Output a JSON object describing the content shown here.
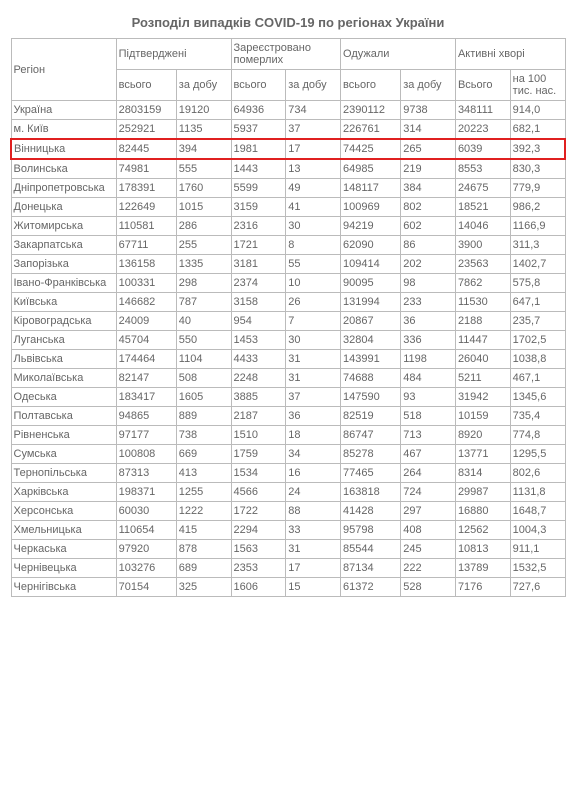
{
  "title": "Розподіл випадків COVID-19 по регіонах України",
  "table": {
    "header_row1": {
      "region": "Регіон",
      "confirmed": "Підтверджені",
      "deaths": "Зареєстровано померлих",
      "recovered": "Одужали",
      "active": "Активні хворі"
    },
    "header_row2": {
      "total": "всього",
      "daily": "за добу",
      "total_cap": "Всього",
      "per100k": "на 100 тис. нас."
    },
    "highlight_index": 2,
    "rows": [
      {
        "region": "Україна",
        "c1": "2803159",
        "c2": "19120",
        "c3": "64936",
        "c4": "734",
        "c5": "2390112",
        "c6": "9738",
        "c7": "348111",
        "c8": "914,0"
      },
      {
        "region": "м. Київ",
        "c1": "252921",
        "c2": "1135",
        "c3": "5937",
        "c4": "37",
        "c5": "226761",
        "c6": "314",
        "c7": "20223",
        "c8": "682,1"
      },
      {
        "region": "Вінницька",
        "c1": "82445",
        "c2": "394",
        "c3": "1981",
        "c4": "17",
        "c5": "74425",
        "c6": "265",
        "c7": "6039",
        "c8": "392,3"
      },
      {
        "region": "Волинська",
        "c1": "74981",
        "c2": "555",
        "c3": "1443",
        "c4": "13",
        "c5": "64985",
        "c6": "219",
        "c7": "8553",
        "c8": "830,3"
      },
      {
        "region": "Дніпропетровська",
        "c1": "178391",
        "c2": "1760",
        "c3": "5599",
        "c4": "49",
        "c5": "148117",
        "c6": "384",
        "c7": "24675",
        "c8": "779,9"
      },
      {
        "region": "Донецька",
        "c1": "122649",
        "c2": "1015",
        "c3": "3159",
        "c4": "41",
        "c5": "100969",
        "c6": "802",
        "c7": "18521",
        "c8": "986,2"
      },
      {
        "region": "Житомирська",
        "c1": "110581",
        "c2": "286",
        "c3": "2316",
        "c4": "30",
        "c5": "94219",
        "c6": "602",
        "c7": "14046",
        "c8": "1166,9"
      },
      {
        "region": "Закарпатська",
        "c1": "67711",
        "c2": "255",
        "c3": "1721",
        "c4": "8",
        "c5": "62090",
        "c6": "86",
        "c7": "3900",
        "c8": "311,3"
      },
      {
        "region": "Запорізька",
        "c1": "136158",
        "c2": "1335",
        "c3": "3181",
        "c4": "55",
        "c5": "109414",
        "c6": "202",
        "c7": "23563",
        "c8": "1402,7"
      },
      {
        "region": "Івано-Франківська",
        "c1": "100331",
        "c2": "298",
        "c3": "2374",
        "c4": "10",
        "c5": "90095",
        "c6": "98",
        "c7": "7862",
        "c8": "575,8"
      },
      {
        "region": "Київська",
        "c1": "146682",
        "c2": "787",
        "c3": "3158",
        "c4": "26",
        "c5": "131994",
        "c6": "233",
        "c7": "11530",
        "c8": "647,1"
      },
      {
        "region": "Кіровоградська",
        "c1": "24009",
        "c2": "40",
        "c3": "954",
        "c4": "7",
        "c5": "20867",
        "c6": "36",
        "c7": "2188",
        "c8": "235,7"
      },
      {
        "region": "Луганська",
        "c1": "45704",
        "c2": "550",
        "c3": "1453",
        "c4": "30",
        "c5": "32804",
        "c6": "336",
        "c7": "11447",
        "c8": "1702,5"
      },
      {
        "region": "Львівська",
        "c1": "174464",
        "c2": "1104",
        "c3": "4433",
        "c4": "31",
        "c5": "143991",
        "c6": "1198",
        "c7": "26040",
        "c8": "1038,8"
      },
      {
        "region": "Миколаївська",
        "c1": "82147",
        "c2": "508",
        "c3": "2248",
        "c4": "31",
        "c5": "74688",
        "c6": "484",
        "c7": "5211",
        "c8": "467,1"
      },
      {
        "region": "Одеська",
        "c1": "183417",
        "c2": "1605",
        "c3": "3885",
        "c4": "37",
        "c5": "147590",
        "c6": "93",
        "c7": "31942",
        "c8": "1345,6"
      },
      {
        "region": "Полтавська",
        "c1": "94865",
        "c2": "889",
        "c3": "2187",
        "c4": "36",
        "c5": "82519",
        "c6": "518",
        "c7": "10159",
        "c8": "735,4"
      },
      {
        "region": "Рівненська",
        "c1": "97177",
        "c2": "738",
        "c3": "1510",
        "c4": "18",
        "c5": "86747",
        "c6": "713",
        "c7": "8920",
        "c8": "774,8"
      },
      {
        "region": "Сумська",
        "c1": "100808",
        "c2": "669",
        "c3": "1759",
        "c4": "34",
        "c5": "85278",
        "c6": "467",
        "c7": "13771",
        "c8": "1295,5"
      },
      {
        "region": "Тернопільська",
        "c1": "87313",
        "c2": "413",
        "c3": "1534",
        "c4": "16",
        "c5": "77465",
        "c6": "264",
        "c7": "8314",
        "c8": "802,6"
      },
      {
        "region": "Харківська",
        "c1": "198371",
        "c2": "1255",
        "c3": "4566",
        "c4": "24",
        "c5": "163818",
        "c6": "724",
        "c7": "29987",
        "c8": "1131,8"
      },
      {
        "region": "Херсонська",
        "c1": "60030",
        "c2": "1222",
        "c3": "1722",
        "c4": "88",
        "c5": "41428",
        "c6": "297",
        "c7": "16880",
        "c8": "1648,7"
      },
      {
        "region": "Хмельницька",
        "c1": "110654",
        "c2": "415",
        "c3": "2294",
        "c4": "33",
        "c5": "95798",
        "c6": "408",
        "c7": "12562",
        "c8": "1004,3"
      },
      {
        "region": "Черкаська",
        "c1": "97920",
        "c2": "878",
        "c3": "1563",
        "c4": "31",
        "c5": "85544",
        "c6": "245",
        "c7": "10813",
        "c8": "911,1"
      },
      {
        "region": "Чернівецька",
        "c1": "103276",
        "c2": "689",
        "c3": "2353",
        "c4": "17",
        "c5": "87134",
        "c6": "222",
        "c7": "13789",
        "c8": "1532,5"
      },
      {
        "region": "Чернігівська",
        "c1": "70154",
        "c2": "325",
        "c3": "1606",
        "c4": "15",
        "c5": "61372",
        "c6": "528",
        "c7": "7176",
        "c8": "727,6"
      }
    ]
  }
}
